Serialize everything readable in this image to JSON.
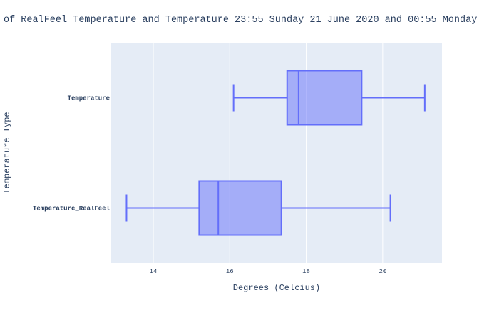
{
  "chart_data": {
    "type": "box",
    "orientation": "horizontal",
    "title": "of RealFeel Temperature and Temperature 23:55 Sunday 21 June 2020 and 00:55 Monday",
    "xlabel": "Degrees (Celcius)",
    "ylabel": "Temperature Type",
    "xlim": [
      12.9,
      21.55
    ],
    "xticks": [
      14,
      16,
      18,
      20
    ],
    "grid": true,
    "categories": [
      "Temperature",
      "Temperature_RealFeel"
    ],
    "boxes": [
      {
        "category": "Temperature",
        "min": 16.1,
        "q1": 17.5,
        "median": 17.8,
        "q3": 19.45,
        "max": 21.1
      },
      {
        "category": "Temperature_RealFeel",
        "min": 13.3,
        "q1": 15.2,
        "median": 15.7,
        "q3": 17.35,
        "max": 20.2
      }
    ],
    "colors": {
      "line": "#636efa",
      "fill": "rgba(99,110,250,0.5)",
      "plot_bg": "#e5ecf6",
      "grid": "#ffffff",
      "text": "#2a3f5f"
    }
  }
}
